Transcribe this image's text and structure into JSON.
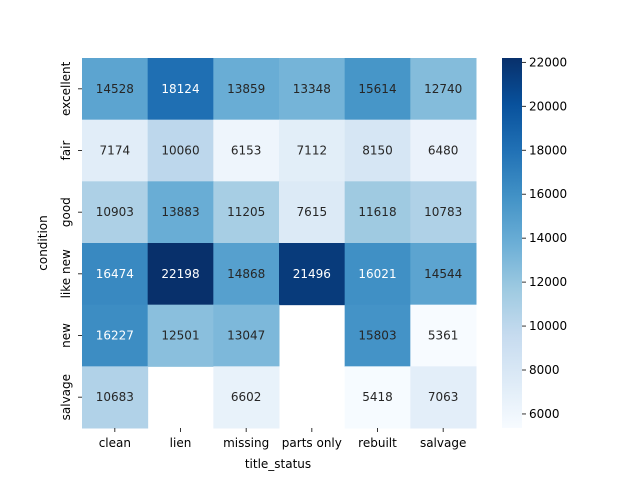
{
  "chart_data": {
    "type": "heatmap",
    "title": "",
    "xlabel": "title_status",
    "ylabel": "condition",
    "x_categories": [
      "clean",
      "lien",
      "missing",
      "parts only",
      "rebuilt",
      "salvage"
    ],
    "y_categories": [
      "excellent",
      "fair",
      "good",
      "like new",
      "new",
      "salvage"
    ],
    "values": [
      [
        14528,
        18124,
        13859,
        13348,
        15614,
        12740
      ],
      [
        7174,
        10060,
        6153,
        7112,
        8150,
        6480
      ],
      [
        10903,
        13883,
        11205,
        7615,
        11618,
        10783
      ],
      [
        16474,
        22198,
        14868,
        21496,
        16021,
        14544
      ],
      [
        16227,
        12501,
        13047,
        null,
        15803,
        5361
      ],
      [
        10683,
        null,
        6602,
        null,
        5418,
        7063
      ]
    ],
    "color_range": [
      5361,
      22198
    ],
    "colormap": "Blues",
    "colorbar_ticks": [
      6000,
      8000,
      10000,
      12000,
      14000,
      16000,
      18000,
      20000,
      22000
    ],
    "grid": false,
    "annotations": true
  }
}
